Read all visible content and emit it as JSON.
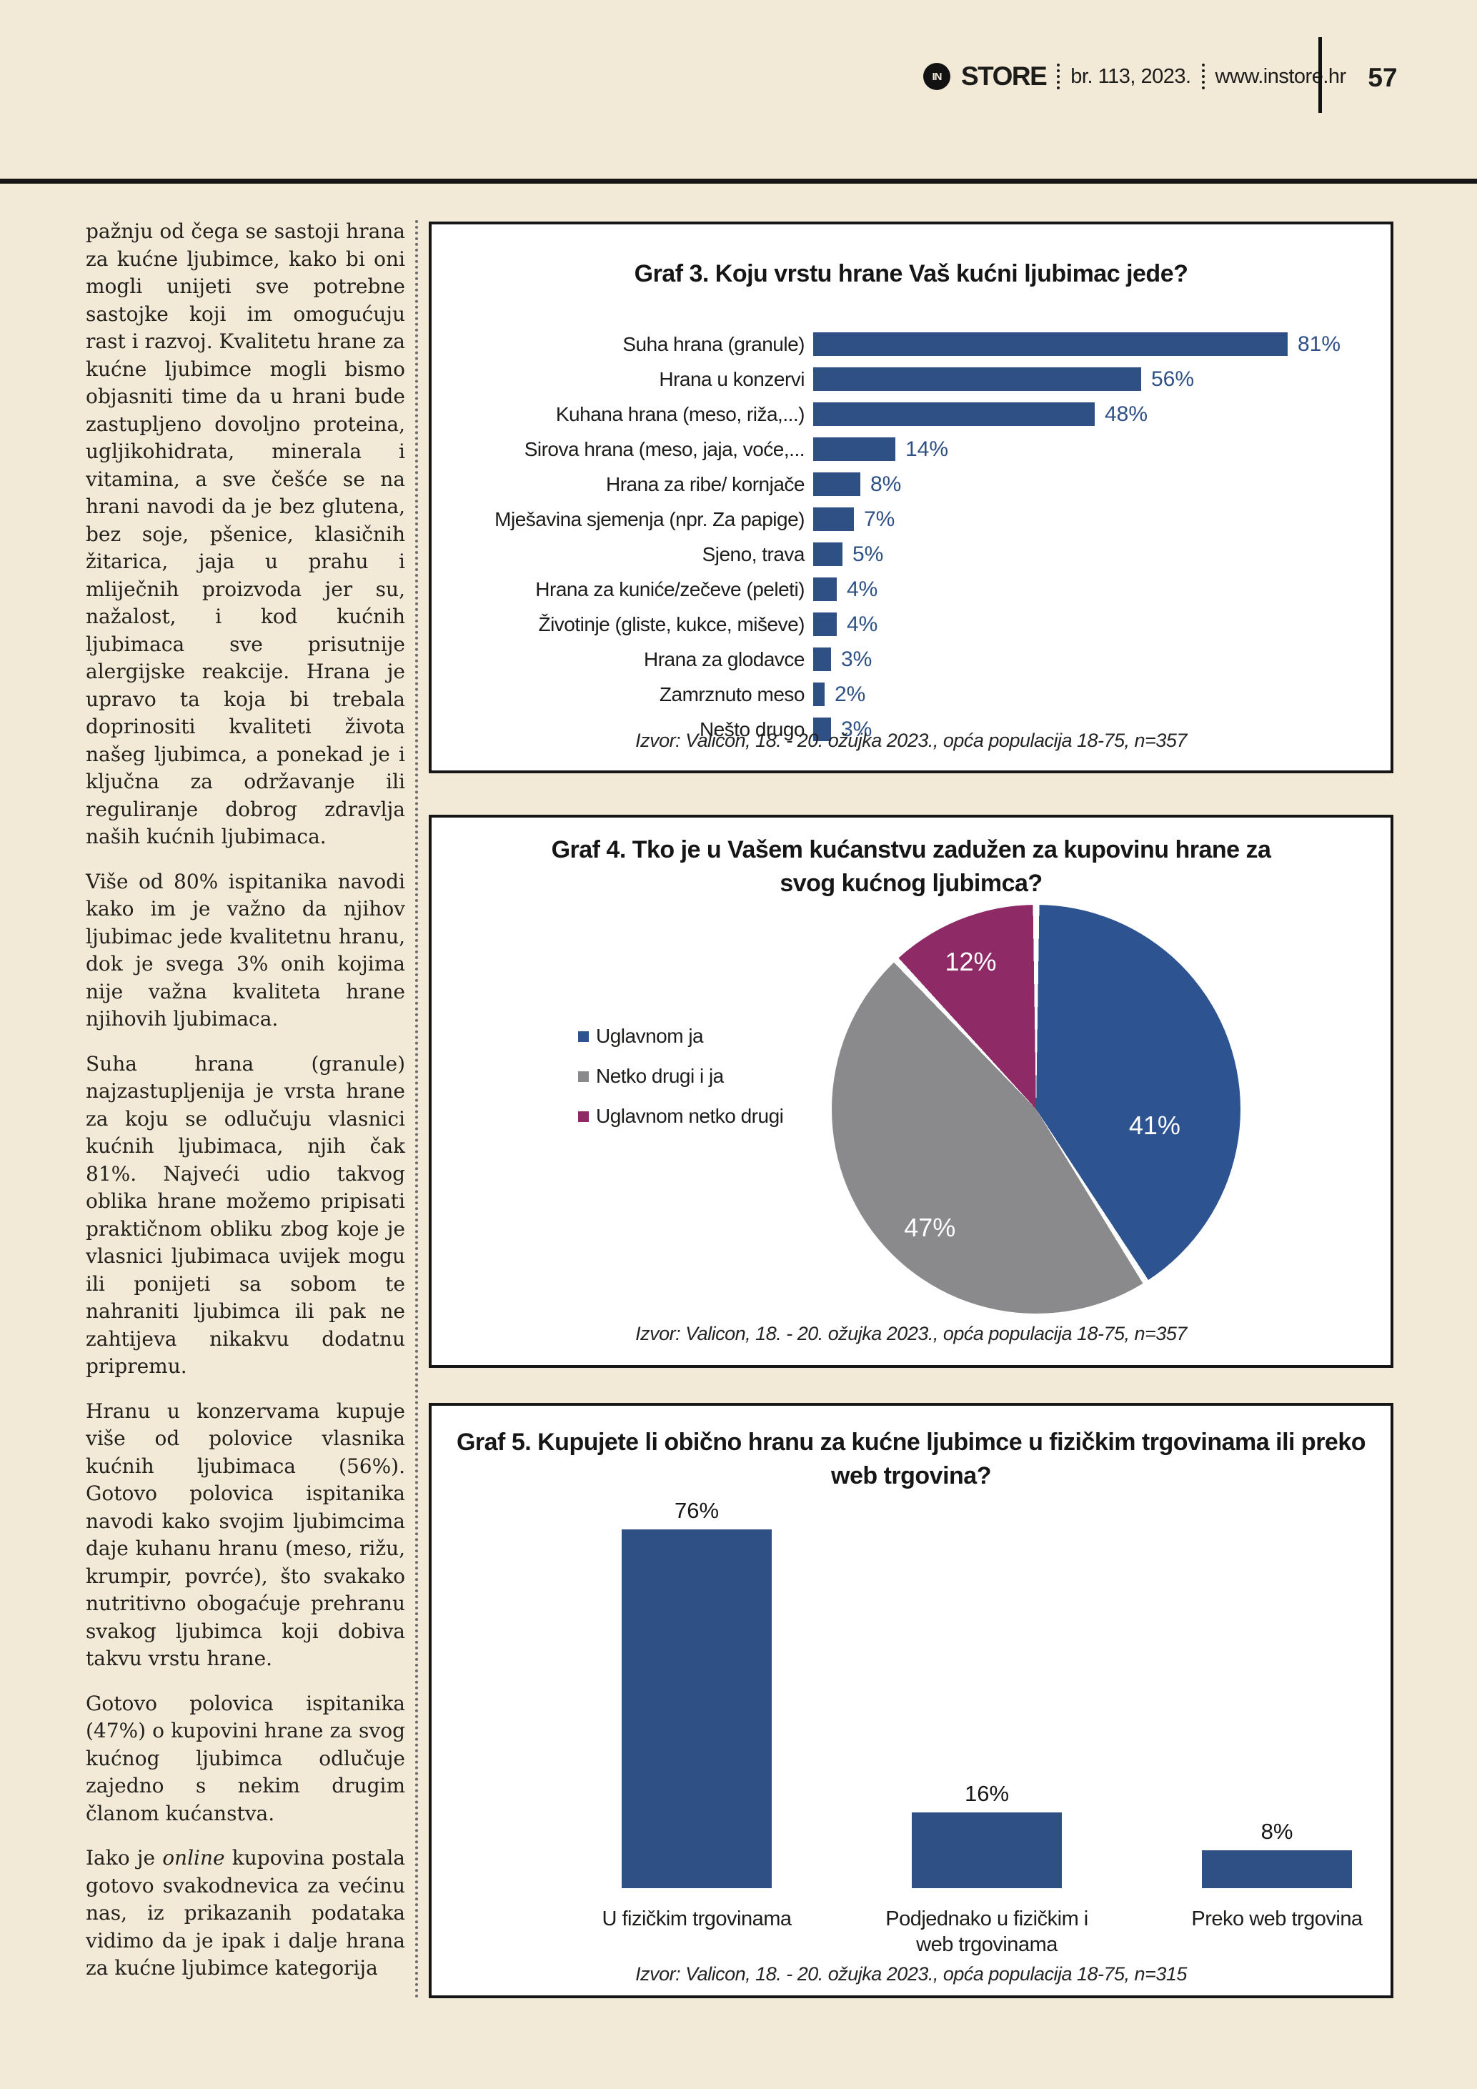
{
  "page_header": {
    "logo_circle": "IN",
    "logo_text": "STORE",
    "issue": "br. 113, 2023.",
    "site": "www.instore.hr",
    "page_number": "57"
  },
  "article": {
    "paragraphs": [
      "pažnju od čega se sastoji hrana za kućne ljubimce, kako bi oni mogli unijeti sve potrebne sastojke koji im omogućuju rast i razvoj. Kvalitetu hrane za kućne ljubimce mogli bismo objasniti time da u hrani bude zastupljeno dovoljno proteina, ugljikohidrata, minerala i vitamina, a sve češće se na hrani navodi da je bez glutena, bez soje, pšenice, klasičnih žitarica, jaja u prahu i mliječnih proizvoda jer su, nažalost, i kod kućnih ljubimaca sve prisutnije alergijske reakcije. Hrana je upravo ta koja bi trebala doprinositi kvaliteti života našeg ljubimca, a ponekad je i ključna za održavanje ili reguliranje dobrog zdravlja naših kućnih ljubimaca.",
      "Više od 80% ispitanika navodi kako im je važno da njihov ljubimac jede kvalitetnu hranu, dok je svega 3% onih kojima nije važna kvaliteta hrane njihovih ljubimaca.",
      "Suha hrana (granule) najzastupljenija je vrsta hrane za koju se odlučuju vlasnici kućnih ljubimaca, njih čak 81%. Najveći udio takvog oblika hrane možemo pripisati praktičnom obliku zbog koje je vlasnici ljubimaca uvijek mogu ili ponijeti sa sobom te nahraniti ljubimca ili pak ne zahtijeva nikakvu dodatnu pripremu.",
      "Hranu u konzervama kupuje više od polovice vlasnika kućnih ljubimaca (56%). Gotovo polovica ispitanika navodi kako svojim ljubimcima daje kuhanu hranu (meso, rižu, krumpir, povrće), što svakako nutritivno obogaćuje prehranu svakog ljubimca koji dobiva takvu vrstu hrane.",
      "Gotovo polovica ispitanika (47%) o kupovini hrane za svog kućnog ljubimca odlučuje zajedno s nekim drugim članom kućanstva."
    ],
    "last_paragraph": {
      "prefix": "Iako je ",
      "italic": "online",
      "suffix": " kupovina postala gotovo svakodnevica za većinu nas, iz prikazanih podataka vidimo da je ipak i dalje hrana za kućne ljubimce kategorija"
    }
  },
  "colors": {
    "page_background": "#f3e9d7",
    "chart_navy": "#2e5085",
    "pie_blue": "#2d5391",
    "pie_gray": "#8a8a8c",
    "pie_purple": "#8e2a66",
    "rule_black": "#161616"
  },
  "chart_data": [
    {
      "type": "bar",
      "orientation": "horizontal",
      "title": "Graf 3. Koju vrstu hrane Vaš kućni ljubimac jede?",
      "categories": [
        "Suha hrana (granule)",
        "Hrana u konzervi",
        "Kuhana hrana (meso, riža,...)",
        "Sirova hrana (meso, jaja, voće,...",
        "Hrana za ribe/ kornjače",
        "Mješavina sjemenja (npr. Za papige)",
        "Sjeno, trava",
        "Hrana za kuniće/zečeve (peleti)",
        "Životinje (gliste, kukce, miševe)",
        "Hrana za glodavce",
        "Zamrznuto meso",
        "Nešto drugo"
      ],
      "values": [
        81,
        56,
        48,
        14,
        8,
        7,
        5,
        4,
        4,
        3,
        2,
        3
      ],
      "value_labels": [
        "81%",
        "56%",
        "48%",
        "14%",
        "8%",
        "7%",
        "5%",
        "4%",
        "4%",
        "3%",
        "2%",
        "3%"
      ],
      "bar_color": "#2e5085",
      "value_label_color": "#2e5085",
      "xlim": [
        0,
        100
      ],
      "grid": false,
      "source": "Izvor: Valicon, 18. - 20. ožujka 2023., opća populacija 18-75, n=357"
    },
    {
      "type": "pie",
      "title": "Graf 4. Tko je u Vašem kućanstvu zadužen za kupovinu hrane za svog kućnog ljubimca?",
      "slices": [
        {
          "label": "Uglavnom ja",
          "value": 41,
          "pct_label": "41%",
          "color": "#2d5391"
        },
        {
          "label": "Netko drugi i ja",
          "value": 47,
          "pct_label": "47%",
          "color": "#8a8a8c"
        },
        {
          "label": "Uglavnom netko drugi",
          "value": 12,
          "pct_label": "12%",
          "color": "#8e2a66"
        }
      ],
      "legend_position": "left",
      "start_angle": "top-clockwise",
      "source": "Izvor: Valicon, 18. - 20. ožujka 2023., opća populacija 18-75, n=357"
    },
    {
      "type": "bar",
      "orientation": "vertical",
      "title": "Graf 5. Kupujete li obično hranu za kućne ljubimce u fizičkim trgovinama ili preko web trgovina?",
      "categories": [
        "U fizičkim trgovinama",
        "Podjednako u fizičkim i web trgovinama",
        "Preko web trgovina"
      ],
      "values": [
        76,
        16,
        8
      ],
      "value_labels": [
        "76%",
        "16%",
        "8%"
      ],
      "bar_color": "#2e5085",
      "ylim": [
        0,
        80
      ],
      "grid": false,
      "source": "Izvor: Valicon, 18. - 20. ožujka 2023., opća populacija 18-75, n=315"
    }
  ]
}
